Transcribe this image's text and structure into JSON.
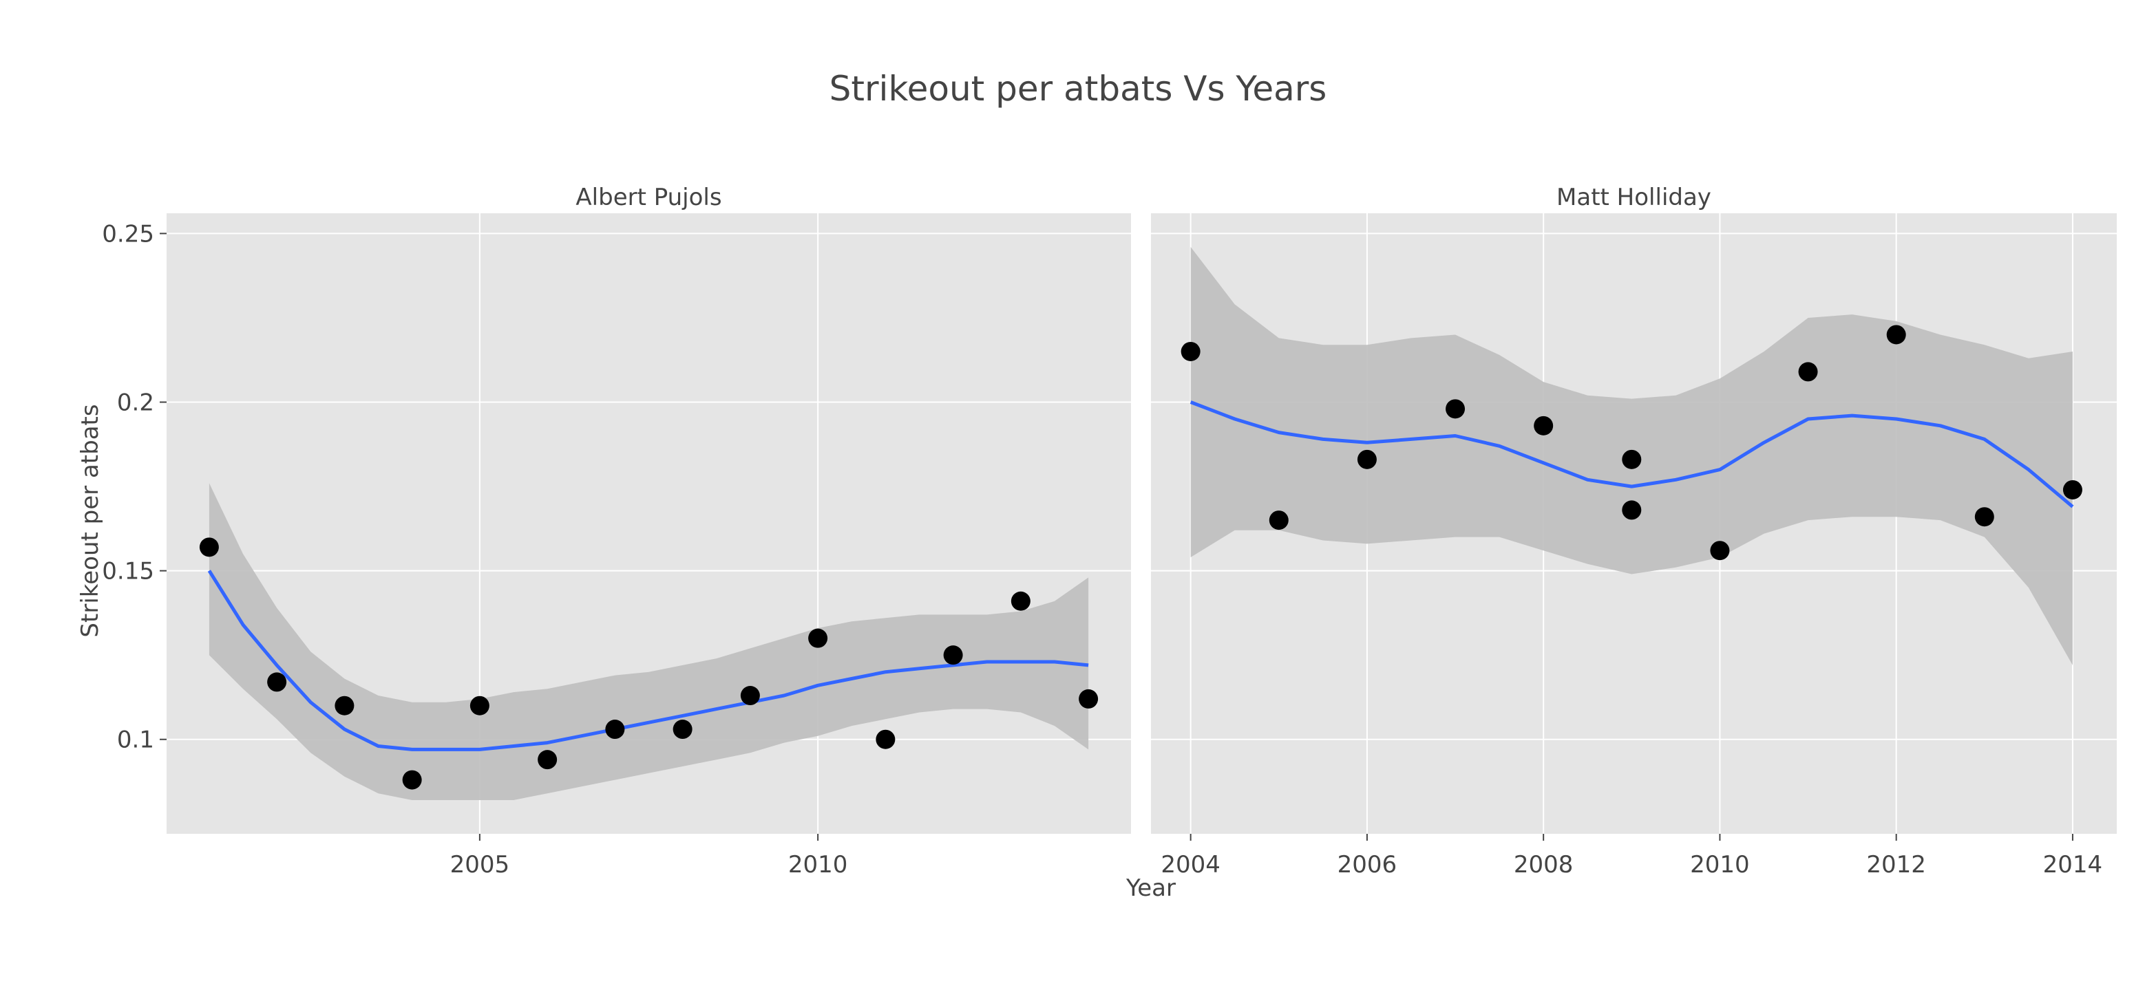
{
  "chart_data": {
    "type": "scatter",
    "title": "Strikeout per atbats Vs Years",
    "xlabel": "Year",
    "ylabel": "Strikeout per atbats",
    "grid": true,
    "colors": {
      "panel_bg": "#e5e5e5",
      "grid": "#ffffff",
      "points": "#000000",
      "smooth_line": "#3366ff",
      "ribbon": "#bfbfbf"
    },
    "ylim": [
      0.072,
      0.256
    ],
    "yticks": [
      0.1,
      0.15,
      0.2,
      0.25
    ],
    "yticklabels": [
      "0.1",
      "0.15",
      "0.2",
      "0.25"
    ],
    "panels": [
      {
        "facet": "Albert Pujols",
        "xlim": [
          2000.37,
          2014.63
        ],
        "xticks": [
          2005,
          2010
        ],
        "xticklabels": [
          "2005",
          "2010"
        ],
        "points": {
          "x": [
            2001,
            2002,
            2003,
            2004,
            2005,
            2006,
            2007,
            2008,
            2009,
            2010,
            2011,
            2012,
            2013,
            2014
          ],
          "y": [
            0.157,
            0.117,
            0.11,
            0.088,
            0.11,
            0.094,
            0.103,
            0.103,
            0.113,
            0.13,
            0.1,
            0.125,
            0.141,
            0.112
          ]
        },
        "smooth": {
          "x": [
            2001,
            2001.5,
            2002,
            2002.5,
            2003,
            2003.5,
            2004,
            2004.5,
            2005,
            2005.5,
            2006,
            2006.5,
            2007,
            2007.5,
            2008,
            2008.5,
            2009,
            2009.5,
            2010,
            2010.5,
            2011,
            2011.5,
            2012,
            2012.5,
            2013,
            2013.5,
            2014
          ],
          "y": [
            0.15,
            0.134,
            0.122,
            0.111,
            0.103,
            0.098,
            0.097,
            0.097,
            0.097,
            0.098,
            0.099,
            0.101,
            0.103,
            0.105,
            0.107,
            0.109,
            0.111,
            0.113,
            0.116,
            0.118,
            0.12,
            0.121,
            0.122,
            0.123,
            0.123,
            0.123,
            0.122
          ],
          "lower": [
            0.125,
            0.115,
            0.106,
            0.096,
            0.089,
            0.084,
            0.082,
            0.082,
            0.082,
            0.082,
            0.084,
            0.086,
            0.088,
            0.09,
            0.092,
            0.094,
            0.096,
            0.099,
            0.101,
            0.104,
            0.106,
            0.108,
            0.109,
            0.109,
            0.108,
            0.104,
            0.097
          ],
          "upper": [
            0.176,
            0.155,
            0.139,
            0.126,
            0.118,
            0.113,
            0.111,
            0.111,
            0.112,
            0.114,
            0.115,
            0.117,
            0.119,
            0.12,
            0.122,
            0.124,
            0.127,
            0.13,
            0.133,
            0.135,
            0.136,
            0.137,
            0.137,
            0.137,
            0.138,
            0.141,
            0.148
          ]
        }
      },
      {
        "facet": "Matt Holliday",
        "xlim": [
          2003.55,
          2014.5
        ],
        "xticks": [
          2004,
          2006,
          2008,
          2010,
          2012,
          2014
        ],
        "xticklabels": [
          "2004",
          "2006",
          "2008",
          "2010",
          "2012",
          "2014"
        ],
        "points": {
          "x": [
            2004,
            2005,
            2006,
            2007,
            2008,
            2009,
            2009,
            2010,
            2011,
            2012,
            2013,
            2014
          ],
          "y": [
            0.215,
            0.165,
            0.183,
            0.198,
            0.193,
            0.183,
            0.168,
            0.156,
            0.209,
            0.22,
            0.166,
            0.174
          ]
        },
        "smooth": {
          "x": [
            2004,
            2004.5,
            2005,
            2005.5,
            2006,
            2006.5,
            2007,
            2007.5,
            2008,
            2008.5,
            2009,
            2009.5,
            2010,
            2010.5,
            2011,
            2011.5,
            2012,
            2012.5,
            2013,
            2013.5,
            2014
          ],
          "y": [
            0.2,
            0.195,
            0.191,
            0.189,
            0.188,
            0.189,
            0.19,
            0.187,
            0.182,
            0.177,
            0.175,
            0.177,
            0.18,
            0.188,
            0.195,
            0.196,
            0.195,
            0.193,
            0.189,
            0.18,
            0.169
          ],
          "lower": [
            0.154,
            0.162,
            0.162,
            0.159,
            0.158,
            0.159,
            0.16,
            0.16,
            0.156,
            0.152,
            0.149,
            0.151,
            0.154,
            0.161,
            0.165,
            0.166,
            0.166,
            0.165,
            0.16,
            0.145,
            0.122
          ],
          "upper": [
            0.246,
            0.229,
            0.219,
            0.217,
            0.217,
            0.219,
            0.22,
            0.214,
            0.206,
            0.202,
            0.201,
            0.202,
            0.207,
            0.215,
            0.225,
            0.226,
            0.224,
            0.22,
            0.217,
            0.213,
            0.215
          ]
        }
      }
    ]
  }
}
